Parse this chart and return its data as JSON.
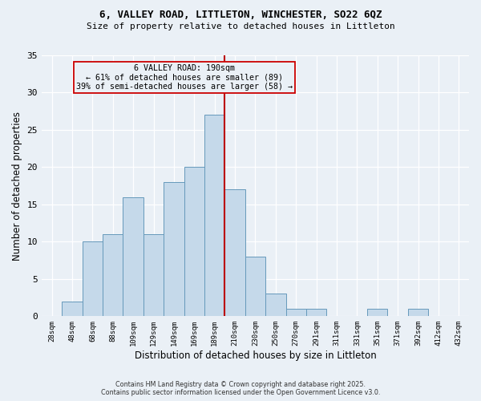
{
  "title1": "6, VALLEY ROAD, LITTLETON, WINCHESTER, SO22 6QZ",
  "title2": "Size of property relative to detached houses in Littleton",
  "xlabel": "Distribution of detached houses by size in Littleton",
  "ylabel": "Number of detached properties",
  "footer": "Contains HM Land Registry data © Crown copyright and database right 2025.\nContains public sector information licensed under the Open Government Licence v3.0.",
  "bin_labels": [
    "28sqm",
    "48sqm",
    "68sqm",
    "88sqm",
    "109sqm",
    "129sqm",
    "149sqm",
    "169sqm",
    "189sqm",
    "210sqm",
    "230sqm",
    "250sqm",
    "270sqm",
    "291sqm",
    "311sqm",
    "331sqm",
    "351sqm",
    "371sqm",
    "392sqm",
    "412sqm",
    "432sqm"
  ],
  "counts": [
    0,
    2,
    10,
    11,
    16,
    11,
    18,
    20,
    27,
    17,
    8,
    3,
    1,
    1,
    0,
    0,
    1,
    0,
    1,
    0,
    0
  ],
  "bar_color": "#c5d9ea",
  "bar_edge_color": "#6699bb",
  "ref_line_index": 8,
  "ref_line_color": "#bb0000",
  "annotation_text": "6 VALLEY ROAD: 190sqm\n← 61% of detached houses are smaller (89)\n39% of semi-detached houses are larger (58) →",
  "annotation_box_color": "#cc0000",
  "annotation_text_color": "#000000",
  "background_color": "#eaf0f6",
  "grid_color": "#ffffff",
  "ylim": [
    0,
    35
  ],
  "yticks": [
    0,
    5,
    10,
    15,
    20,
    25,
    30,
    35
  ]
}
